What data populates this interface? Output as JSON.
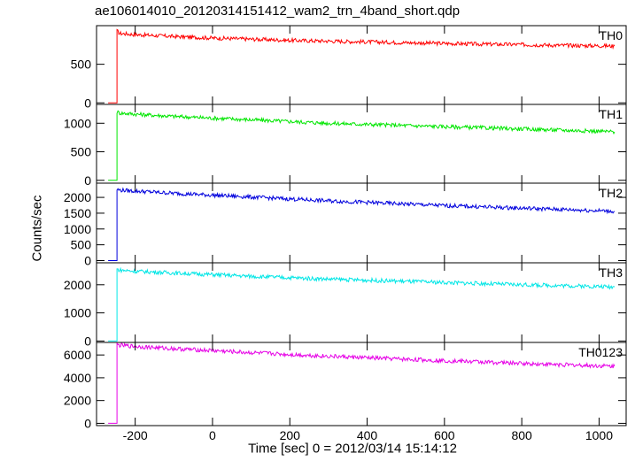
{
  "title": "ae106014010_20120314151412_wam2_trn_4band_short.qdp",
  "ylabel": "Counts/sec",
  "xlabel": "Time [sec] 0 = 2012/03/14 15:14:12",
  "chart_data": [
    {
      "type": "line",
      "name": "TH0",
      "color": "#ff0000",
      "xlim": [
        -300,
        1070
      ],
      "ylim": [
        -20,
        1000
      ],
      "xticks": [
        -200,
        0,
        200,
        400,
        600,
        800,
        1000
      ],
      "yticks": [
        0,
        500
      ],
      "x": [
        -270,
        -247,
        -247,
        -240,
        -200,
        -100,
        0,
        100,
        200,
        300,
        400,
        500,
        600,
        700,
        800,
        900,
        1000,
        1040
      ],
      "y": [
        0,
        0,
        930,
        900,
        885,
        860,
        840,
        825,
        810,
        800,
        790,
        780,
        770,
        760,
        755,
        745,
        740,
        735
      ]
    },
    {
      "type": "line",
      "name": "TH1",
      "color": "#00e600",
      "xlim": [
        -300,
        1070
      ],
      "ylim": [
        -50,
        1330
      ],
      "xticks": [
        -200,
        0,
        200,
        400,
        600,
        800,
        1000
      ],
      "yticks": [
        0,
        500,
        1000
      ],
      "x": [
        -270,
        -247,
        -247,
        -240,
        -200,
        -100,
        0,
        100,
        200,
        300,
        400,
        500,
        600,
        700,
        800,
        900,
        1000,
        1040
      ],
      "y": [
        0,
        0,
        1200,
        1180,
        1160,
        1120,
        1090,
        1060,
        1030,
        1000,
        980,
        960,
        940,
        920,
        900,
        880,
        860,
        850
      ]
    },
    {
      "type": "line",
      "name": "TH2",
      "color": "#0000dd",
      "xlim": [
        -300,
        1070
      ],
      "ylim": [
        -70,
        2450
      ],
      "xticks": [
        -200,
        0,
        200,
        400,
        600,
        800,
        1000
      ],
      "yticks": [
        0,
        500,
        1000,
        1500,
        2000
      ],
      "x": [
        -270,
        -247,
        -247,
        -240,
        -200,
        -100,
        0,
        100,
        200,
        300,
        400,
        500,
        600,
        700,
        800,
        900,
        1000,
        1040
      ],
      "y": [
        0,
        0,
        2250,
        2230,
        2200,
        2130,
        2070,
        2010,
        1950,
        1890,
        1840,
        1790,
        1740,
        1700,
        1660,
        1620,
        1580,
        1560
      ]
    },
    {
      "type": "line",
      "name": "TH3",
      "color": "#00e6e6",
      "xlim": [
        -300,
        1070
      ],
      "ylim": [
        -50,
        2780
      ],
      "xticks": [
        -200,
        0,
        200,
        400,
        600,
        800,
        1000
      ],
      "yticks": [
        0,
        1000,
        2000
      ],
      "x": [
        -270,
        -247,
        -247,
        -240,
        -200,
        -100,
        0,
        100,
        200,
        300,
        400,
        500,
        600,
        700,
        800,
        900,
        1000,
        1040
      ],
      "y": [
        0,
        0,
        2550,
        2520,
        2480,
        2420,
        2360,
        2300,
        2250,
        2200,
        2160,
        2120,
        2080,
        2040,
        2000,
        1970,
        1940,
        1920
      ]
    },
    {
      "type": "line",
      "name": "TH0123",
      "color": "#e600e6",
      "xlim": [
        -300,
        1070
      ],
      "ylim": [
        -200,
        7100
      ],
      "xticks": [
        -200,
        0,
        200,
        400,
        600,
        800,
        1000
      ],
      "yticks": [
        0,
        2000,
        4000,
        6000
      ],
      "x": [
        -270,
        -247,
        -247,
        -240,
        -200,
        -100,
        0,
        100,
        200,
        300,
        400,
        500,
        600,
        700,
        800,
        900,
        1000,
        1040
      ],
      "y": [
        0,
        0,
        6900,
        6850,
        6750,
        6550,
        6380,
        6200,
        6040,
        5890,
        5750,
        5620,
        5500,
        5380,
        5260,
        5150,
        5040,
        5000
      ]
    }
  ]
}
